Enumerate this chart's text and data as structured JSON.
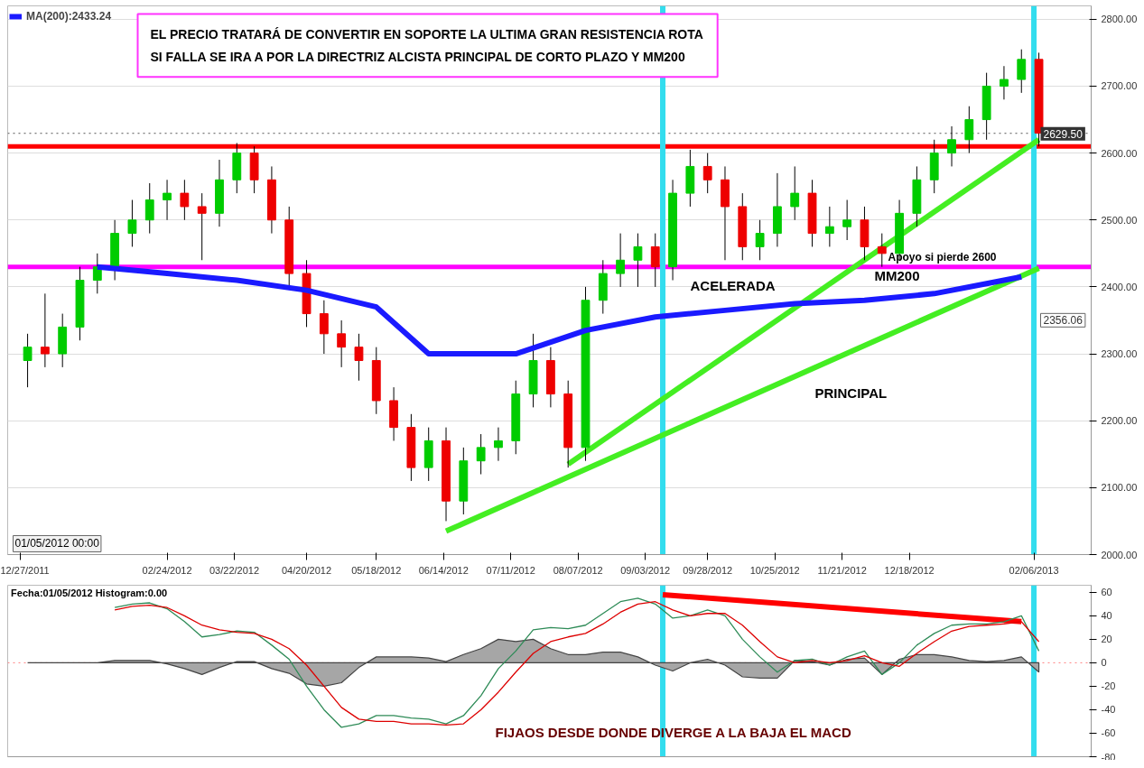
{
  "chart_data": [
    {
      "type": "candlestick",
      "x": [
        "2011-12-30",
        "2012-01-06",
        "2012-01-13",
        "2012-01-20",
        "2012-01-27",
        "2012-02-03",
        "2012-02-10",
        "2012-02-17",
        "2012-02-24",
        "2012-03-02",
        "2012-03-09",
        "2012-03-16",
        "2012-03-23",
        "2012-03-30",
        "2012-04-06",
        "2012-04-13",
        "2012-04-20",
        "2012-04-27",
        "2012-05-04",
        "2012-05-11",
        "2012-05-18",
        "2012-05-25",
        "2012-06-01",
        "2012-06-08",
        "2012-06-15",
        "2012-06-22",
        "2012-06-29",
        "2012-07-06",
        "2012-07-13",
        "2012-07-20",
        "2012-07-27",
        "2012-08-03",
        "2012-08-10",
        "2012-08-17",
        "2012-08-24",
        "2012-08-31",
        "2012-09-07",
        "2012-09-14",
        "2012-09-21",
        "2012-09-28",
        "2012-10-05",
        "2012-10-12",
        "2012-10-19",
        "2012-10-26",
        "2012-11-02",
        "2012-11-09",
        "2012-11-16",
        "2012-11-23",
        "2012-11-30",
        "2012-12-07",
        "2012-12-14",
        "2012-12-21",
        "2012-12-28",
        "2013-01-04",
        "2013-01-11",
        "2013-01-18",
        "2013-01-25",
        "2013-02-01",
        "2013-02-08"
      ],
      "ohlc": [
        [
          2290,
          2330,
          2250,
          2310
        ],
        [
          2310,
          2390,
          2280,
          2300
        ],
        [
          2300,
          2360,
          2280,
          2340
        ],
        [
          2340,
          2430,
          2320,
          2410
        ],
        [
          2410,
          2450,
          2390,
          2430
        ],
        [
          2430,
          2500,
          2410,
          2480
        ],
        [
          2480,
          2530,
          2460,
          2500
        ],
        [
          2500,
          2555,
          2480,
          2530
        ],
        [
          2530,
          2560,
          2500,
          2540
        ],
        [
          2540,
          2560,
          2500,
          2520
        ],
        [
          2520,
          2540,
          2440,
          2510
        ],
        [
          2510,
          2590,
          2490,
          2560
        ],
        [
          2560,
          2615,
          2540,
          2600
        ],
        [
          2600,
          2610,
          2540,
          2560
        ],
        [
          2560,
          2580,
          2480,
          2500
        ],
        [
          2500,
          2520,
          2400,
          2420
        ],
        [
          2420,
          2440,
          2340,
          2360
        ],
        [
          2360,
          2380,
          2300,
          2330
        ],
        [
          2330,
          2350,
          2280,
          2310
        ],
        [
          2310,
          2330,
          2260,
          2290
        ],
        [
          2290,
          2310,
          2210,
          2230
        ],
        [
          2230,
          2250,
          2170,
          2190
        ],
        [
          2190,
          2210,
          2110,
          2130
        ],
        [
          2130,
          2190,
          2110,
          2170
        ],
        [
          2170,
          2190,
          2050,
          2080
        ],
        [
          2080,
          2160,
          2060,
          2140
        ],
        [
          2140,
          2180,
          2120,
          2160
        ],
        [
          2160,
          2190,
          2140,
          2170
        ],
        [
          2170,
          2260,
          2150,
          2240
        ],
        [
          2240,
          2330,
          2220,
          2290
        ],
        [
          2290,
          2310,
          2220,
          2240
        ],
        [
          2240,
          2260,
          2130,
          2160
        ],
        [
          2160,
          2400,
          2140,
          2380
        ],
        [
          2380,
          2440,
          2360,
          2420
        ],
        [
          2420,
          2480,
          2400,
          2440
        ],
        [
          2440,
          2480,
          2400,
          2460
        ],
        [
          2460,
          2480,
          2400,
          2430
        ],
        [
          2430,
          2560,
          2410,
          2540
        ],
        [
          2540,
          2605,
          2520,
          2580
        ],
        [
          2580,
          2600,
          2540,
          2560
        ],
        [
          2560,
          2580,
          2440,
          2520
        ],
        [
          2520,
          2540,
          2440,
          2460
        ],
        [
          2460,
          2500,
          2440,
          2480
        ],
        [
          2480,
          2570,
          2460,
          2520
        ],
        [
          2520,
          2580,
          2500,
          2540
        ],
        [
          2540,
          2560,
          2460,
          2480
        ],
        [
          2480,
          2520,
          2460,
          2490
        ],
        [
          2490,
          2530,
          2470,
          2500
        ],
        [
          2500,
          2520,
          2440,
          2460
        ],
        [
          2460,
          2480,
          2430,
          2450
        ],
        [
          2450,
          2530,
          2440,
          2510
        ],
        [
          2510,
          2580,
          2490,
          2560
        ],
        [
          2560,
          2620,
          2540,
          2600
        ],
        [
          2600,
          2640,
          2580,
          2620
        ],
        [
          2620,
          2670,
          2600,
          2650
        ],
        [
          2650,
          2720,
          2620,
          2700
        ],
        [
          2700,
          2730,
          2680,
          2710
        ],
        [
          2710,
          2755,
          2690,
          2740
        ],
        [
          2740,
          2750,
          2610,
          2630
        ]
      ],
      "colors": [
        "#00cc00",
        "#ee0000",
        "#00cc00",
        "#00cc00",
        "#00cc00",
        "#00cc00",
        "#00cc00",
        "#00cc00",
        "#00cc00",
        "#ee0000",
        "#ee0000",
        "#00cc00",
        "#00cc00",
        "#ee0000",
        "#ee0000",
        "#ee0000",
        "#ee0000",
        "#ee0000",
        "#ee0000",
        "#ee0000",
        "#ee0000",
        "#ee0000",
        "#ee0000",
        "#00cc00",
        "#ee0000",
        "#00cc00",
        "#00cc00",
        "#00cc00",
        "#00cc00",
        "#00cc00",
        "#ee0000",
        "#ee0000",
        "#00cc00",
        "#00cc00",
        "#00cc00",
        "#00cc00",
        "#ee0000",
        "#00cc00",
        "#00cc00",
        "#ee0000",
        "#ee0000",
        "#ee0000",
        "#00cc00",
        "#00cc00",
        "#00cc00",
        "#ee0000",
        "#00cc00",
        "#00cc00",
        "#ee0000",
        "#ee0000",
        "#00cc00",
        "#00cc00",
        "#00cc00",
        "#00cc00",
        "#00cc00",
        "#00cc00",
        "#00cc00",
        "#00cc00",
        "#ee0000"
      ],
      "series": [
        {
          "name": "MA(200):2433.24",
          "type": "line",
          "color": "#1a1aff",
          "x": [
            "2012-01-27",
            "2012-02-24",
            "2012-03-23",
            "2012-04-20",
            "2012-05-18",
            "2012-06-08",
            "2012-07-13",
            "2012-08-10",
            "2012-09-07",
            "2012-10-05",
            "2012-11-02",
            "2012-11-30",
            "2012-12-28",
            "2013-01-18",
            "2013-02-01"
          ],
          "values": [
            2430,
            2420,
            2410,
            2395,
            2370,
            2300,
            2300,
            2335,
            2355,
            2365,
            2375,
            2380,
            2390,
            2405,
            2415
          ]
        },
        {
          "type": "line",
          "color": "#44ee22",
          "x": [
            "2012-08-03",
            "2013-02-08"
          ],
          "values": [
            2135,
            2620
          ]
        },
        {
          "type": "line",
          "color": "#44ee22",
          "x": [
            "2012-06-15",
            "2013-02-08"
          ],
          "values": [
            2035,
            2428
          ]
        }
      ],
      "xlim": [
        "2011-12-22",
        "2013-03-01"
      ],
      "xticks": [
        {
          "value": "2011-12-27",
          "label": "12/27/2011"
        },
        {
          "value": "2012-02-24",
          "label": "02/24/2012"
        },
        {
          "value": "2012-03-22",
          "label": "03/22/2012"
        },
        {
          "value": "2012-04-20",
          "label": "04/20/2012"
        },
        {
          "value": "2012-05-18",
          "label": "05/18/2012"
        },
        {
          "value": "2012-06-14",
          "label": "06/14/2012"
        },
        {
          "value": "2012-07-11",
          "label": "07/11/2012"
        },
        {
          "value": "2012-08-07",
          "label": "08/07/2012"
        },
        {
          "value": "2012-09-03",
          "label": "09/03/2012"
        },
        {
          "value": "2012-09-28",
          "label": "09/28/2012"
        },
        {
          "value": "2012-10-25",
          "label": "10/25/2012"
        },
        {
          "value": "2012-11-21",
          "label": "11/21/2012"
        },
        {
          "value": "2012-12-18",
          "label": "12/18/2012"
        },
        {
          "value": "2013-02-06",
          "label": "02/06/2013"
        }
      ],
      "ylim": [
        2000,
        2820
      ],
      "yticks": [
        {
          "value": 2000,
          "label": "2000.00"
        },
        {
          "value": 2100,
          "label": "2100.00"
        },
        {
          "value": 2200,
          "label": "2200.00"
        },
        {
          "value": 2300,
          "label": "2300.00"
        },
        {
          "value": 2400,
          "label": "2400.00"
        },
        {
          "value": 2500,
          "label": "2500.00"
        },
        {
          "value": 2600,
          "label": "2600.00"
        },
        {
          "value": 2700,
          "label": "2700.00"
        },
        {
          "value": 2800,
          "label": "2800.00"
        }
      ],
      "grid": "y",
      "legend": "top left",
      "ref_lines": [
        {
          "axis": "y",
          "value": 2629.5,
          "label": "2629.50",
          "color": "#555555",
          "line_style": "dotted"
        },
        {
          "axis": "y",
          "value": 2610,
          "color": "#ff0000"
        },
        {
          "axis": "y",
          "value": 2430,
          "label": "Apoyo si pierde 2600",
          "color": "#ff00ff"
        },
        {
          "axis": "x",
          "value": "2012-09-10",
          "color": "#33ddee"
        },
        {
          "axis": "x",
          "value": "2013-02-06",
          "color": "#33ddee"
        }
      ],
      "annotations": [
        "EL PRECIO TRATARÁ DE CONVERTIR EN SOPORTE LA ULTIMA GRAN RESISTENCIA ROTA SI FALLA SE IRA A POR LA DIRECTRIZ ALCISTA PRINCIPAL DE CORTO PLAZO Y MM200",
        "01/05/2012 00:00",
        "ACELERADA",
        "PRINCIPAL",
        "MM200",
        "2356.06"
      ]
    },
    {
      "type": "line",
      "x": [
        "2012-02-03",
        "2012-02-10",
        "2012-02-17",
        "2012-02-24",
        "2012-03-02",
        "2012-03-09",
        "2012-03-16",
        "2012-03-23",
        "2012-03-30",
        "2012-04-06",
        "2012-04-13",
        "2012-04-20",
        "2012-04-27",
        "2012-05-04",
        "2012-05-11",
        "2012-05-18",
        "2012-05-25",
        "2012-06-01",
        "2012-06-08",
        "2012-06-15",
        "2012-06-22",
        "2012-06-29",
        "2012-07-06",
        "2012-07-13",
        "2012-07-20",
        "2012-07-27",
        "2012-08-03",
        "2012-08-10",
        "2012-08-17",
        "2012-08-24",
        "2012-08-31",
        "2012-09-07",
        "2012-09-14",
        "2012-09-21",
        "2012-09-28",
        "2012-10-05",
        "2012-10-12",
        "2012-10-19",
        "2012-10-26",
        "2012-11-02",
        "2012-11-09",
        "2012-11-16",
        "2012-11-23",
        "2012-11-30",
        "2012-12-07",
        "2012-12-14",
        "2012-12-21",
        "2012-12-28",
        "2013-01-04",
        "2013-01-11",
        "2013-01-18",
        "2013-01-25",
        "2013-02-01",
        "2013-02-08"
      ],
      "series": [
        {
          "type": "area",
          "color": "#a6a6a6",
          "x": [
            "2011-12-30",
            "2012-01-06",
            "2012-01-13",
            "2012-01-20",
            "2012-01-27",
            "2012-02-03",
            "2012-02-10",
            "2012-02-17",
            "2012-02-24",
            "2012-03-02",
            "2012-03-09",
            "2012-03-16",
            "2012-03-23",
            "2012-03-30",
            "2012-04-06",
            "2012-04-13",
            "2012-04-20",
            "2012-04-27",
            "2012-05-04",
            "2012-05-11",
            "2012-05-18",
            "2012-05-25",
            "2012-06-01",
            "2012-06-08",
            "2012-06-15",
            "2012-06-22",
            "2012-06-29",
            "2012-07-06",
            "2012-07-13",
            "2012-07-20",
            "2012-07-27",
            "2012-08-03",
            "2012-08-10",
            "2012-08-17",
            "2012-08-24",
            "2012-08-31",
            "2012-09-07",
            "2012-09-14",
            "2012-09-21",
            "2012-09-28",
            "2012-10-05",
            "2012-10-12",
            "2012-10-19",
            "2012-10-26",
            "2012-11-02",
            "2012-11-09",
            "2012-11-16",
            "2012-11-23",
            "2012-11-30",
            "2012-12-07",
            "2012-12-14",
            "2012-12-21",
            "2012-12-28",
            "2013-01-04",
            "2013-01-11",
            "2013-01-18",
            "2013-01-25",
            "2013-02-01",
            "2013-02-08"
          ],
          "values": [
            0,
            0,
            0,
            0,
            0,
            2,
            2,
            2,
            -1,
            -5,
            -10,
            -4,
            1,
            1,
            -5,
            -9,
            -18,
            -20,
            -17,
            -4,
            5,
            5,
            5,
            4,
            1,
            7,
            12,
            20,
            18,
            20,
            12,
            7,
            7,
            9,
            9,
            5,
            -2,
            -7,
            0,
            3,
            -2,
            -12,
            -13,
            -13,
            2,
            1,
            -2,
            3,
            4,
            -10,
            3,
            7,
            7,
            5,
            2,
            1,
            2,
            5,
            -8
          ]
        },
        {
          "type": "line",
          "color": "#ff0000",
          "x": [
            "2012-09-10",
            "2013-02-01"
          ],
          "values": [
            58,
            35
          ]
        },
        {
          "type": "line",
          "color": "#2e8b57",
          "values": [
            47,
            50,
            51,
            46,
            35,
            22,
            24,
            27,
            26,
            15,
            3,
            -20,
            -40,
            -55,
            -52,
            -45,
            -45,
            -47,
            -48,
            -52,
            -45,
            -28,
            -5,
            10,
            28,
            30,
            29,
            32,
            42,
            52,
            55,
            50,
            38,
            40,
            45,
            40,
            20,
            5,
            -8,
            2,
            3,
            -2,
            5,
            10,
            -10,
            0,
            15,
            25,
            32,
            33,
            33,
            35,
            40,
            10
          ]
        },
        {
          "type": "line",
          "color": "#dd0000",
          "values": [
            45,
            48,
            49,
            47,
            40,
            32,
            28,
            26,
            25,
            20,
            12,
            -2,
            -20,
            -38,
            -48,
            -50,
            -50,
            -52,
            -52,
            -53,
            -52,
            -40,
            -25,
            -8,
            8,
            18,
            22,
            25,
            33,
            43,
            50,
            52,
            45,
            40,
            42,
            42,
            32,
            18,
            5,
            0,
            2,
            0,
            2,
            6,
            0,
            -3,
            8,
            18,
            27,
            31,
            32,
            33,
            35,
            18
          ]
        }
      ],
      "xlim": [
        "2011-12-22",
        "2013-03-01"
      ],
      "ylim": [
        -80,
        66
      ],
      "yticks": [
        60,
        40,
        20,
        0,
        -20,
        -40,
        -60,
        -80
      ],
      "tick_labels": "y",
      "ref_lines": [
        {
          "axis": "y",
          "value": 0,
          "color": "#ff8080",
          "line_style": "dotted"
        },
        {
          "axis": "x",
          "value": "2012-09-10",
          "color": "#33ddee"
        },
        {
          "axis": "x",
          "value": "2013-02-06",
          "color": "#33ddee"
        }
      ],
      "annotations": [
        "Fecha:01/05/2012 Histogram:0.00",
        "FIJAOS DESDE DONDE DIVERGE A LA BAJA EL MACD"
      ]
    }
  ]
}
